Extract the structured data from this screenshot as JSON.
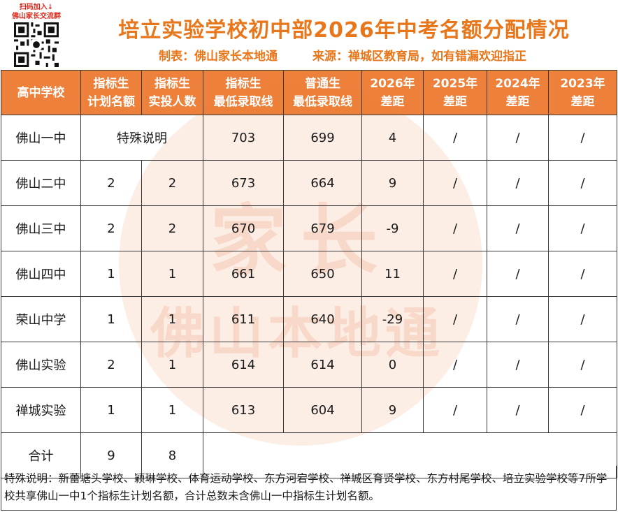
{
  "header": {
    "qr_caption_line1": "扫码加入↓",
    "qr_caption_line2": "佛山家长交流群",
    "title": "培立实验学校初中部2026年中考名额分配情况",
    "maker": "制表：佛山家长本地通",
    "source": "来源：禅城区教育局，如有错漏欢迎指正"
  },
  "watermark": {
    "line1": "家长",
    "line2": "佛山本地通"
  },
  "table": {
    "headers": [
      {
        "line1": "高中学校",
        "line2": ""
      },
      {
        "line1": "指标生",
        "line2": "计划名额"
      },
      {
        "line1": "指标生",
        "line2": "实投人数"
      },
      {
        "line1": "指标生",
        "line2": "最低录取线"
      },
      {
        "line1": "普通生",
        "line2": "最低录取线"
      },
      {
        "line1": "2026年",
        "line2": "差距"
      },
      {
        "line1": "2025年",
        "line2": "差距"
      },
      {
        "line1": "2024年",
        "line2": "差距"
      },
      {
        "line1": "2023年",
        "line2": "差距"
      }
    ],
    "row0": {
      "school": "佛山一中",
      "special": "特殊说明",
      "quota_min": "703",
      "general_min": "699",
      "gap2026": "4",
      "gap2025": "/",
      "gap2024": "/",
      "gap2023": "/"
    },
    "rows": [
      {
        "school": "佛山二中",
        "plan": "2",
        "actual": "2",
        "quota_min": "673",
        "general_min": "664",
        "gap2026": "9",
        "gap2025": "/",
        "gap2024": "/",
        "gap2023": "/"
      },
      {
        "school": "佛山三中",
        "plan": "2",
        "actual": "2",
        "quota_min": "670",
        "general_min": "679",
        "gap2026": "-9",
        "gap2025": "/",
        "gap2024": "/",
        "gap2023": "/"
      },
      {
        "school": "佛山四中",
        "plan": "1",
        "actual": "1",
        "quota_min": "661",
        "general_min": "650",
        "gap2026": "11",
        "gap2025": "/",
        "gap2024": "/",
        "gap2023": "/"
      },
      {
        "school": "荣山中学",
        "plan": "1",
        "actual": "1",
        "quota_min": "611",
        "general_min": "640",
        "gap2026": "-29",
        "gap2025": "/",
        "gap2024": "/",
        "gap2023": "/"
      },
      {
        "school": "佛山实验",
        "plan": "2",
        "actual": "1",
        "quota_min": "614",
        "general_min": "614",
        "gap2026": "0",
        "gap2025": "/",
        "gap2024": "/",
        "gap2023": "/"
      },
      {
        "school": "禅城实验",
        "plan": "1",
        "actual": "1",
        "quota_min": "613",
        "general_min": "604",
        "gap2026": "9",
        "gap2025": "/",
        "gap2024": "/",
        "gap2023": "/"
      }
    ],
    "total": {
      "label": "合计",
      "plan": "9",
      "actual": "8"
    }
  },
  "footer": {
    "note": "特殊说明：新蕾塘头学校、颖琳学校、体育运动学校、东方河宕学校、禅城区育贤学校、东方村尾学校、培立实验学校等7所学校共享佛山一中1个指标生计划名额，合计总数未含佛山一中指标生计划名额。"
  },
  "colors": {
    "accent": "#e8761b",
    "header_bg": "#ec7b32",
    "qr_caption": "#d9281a"
  }
}
